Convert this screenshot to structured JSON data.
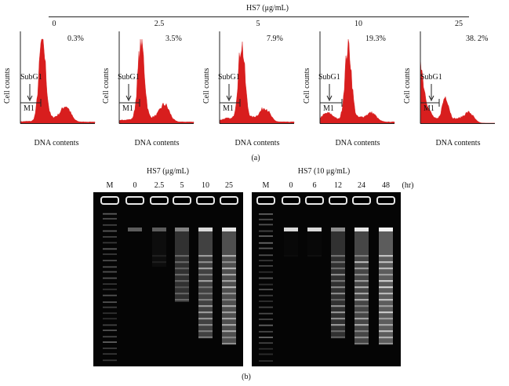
{
  "panel_a": {
    "header": "HS7 (μg/mL)",
    "caption": "(a)",
    "y_label": "Cell counts",
    "x_label": "DNA contents",
    "gate_label": "SubG1",
    "marker_label": "M1",
    "histograms": [
      {
        "dose": "0",
        "percent": "0.3%"
      },
      {
        "dose": "2.5",
        "percent": "3.5%"
      },
      {
        "dose": "5",
        "percent": "7.9%"
      },
      {
        "dose": "10",
        "percent": "19.3%"
      },
      {
        "dose": "25",
        "percent": "38. 2%"
      }
    ],
    "histogram_color": "#d81e1e"
  },
  "panel_b": {
    "caption": "(b)",
    "gel_left": {
      "title": "HS7 (μg/mL)",
      "lanes": [
        "M",
        "0",
        "2.5",
        "5",
        "10",
        "25"
      ]
    },
    "gel_right": {
      "title": "HS7 (10 μg/mL)",
      "lanes": [
        "M",
        "0",
        "6",
        "12",
        "24",
        "48"
      ],
      "unit": "(hr)"
    }
  }
}
